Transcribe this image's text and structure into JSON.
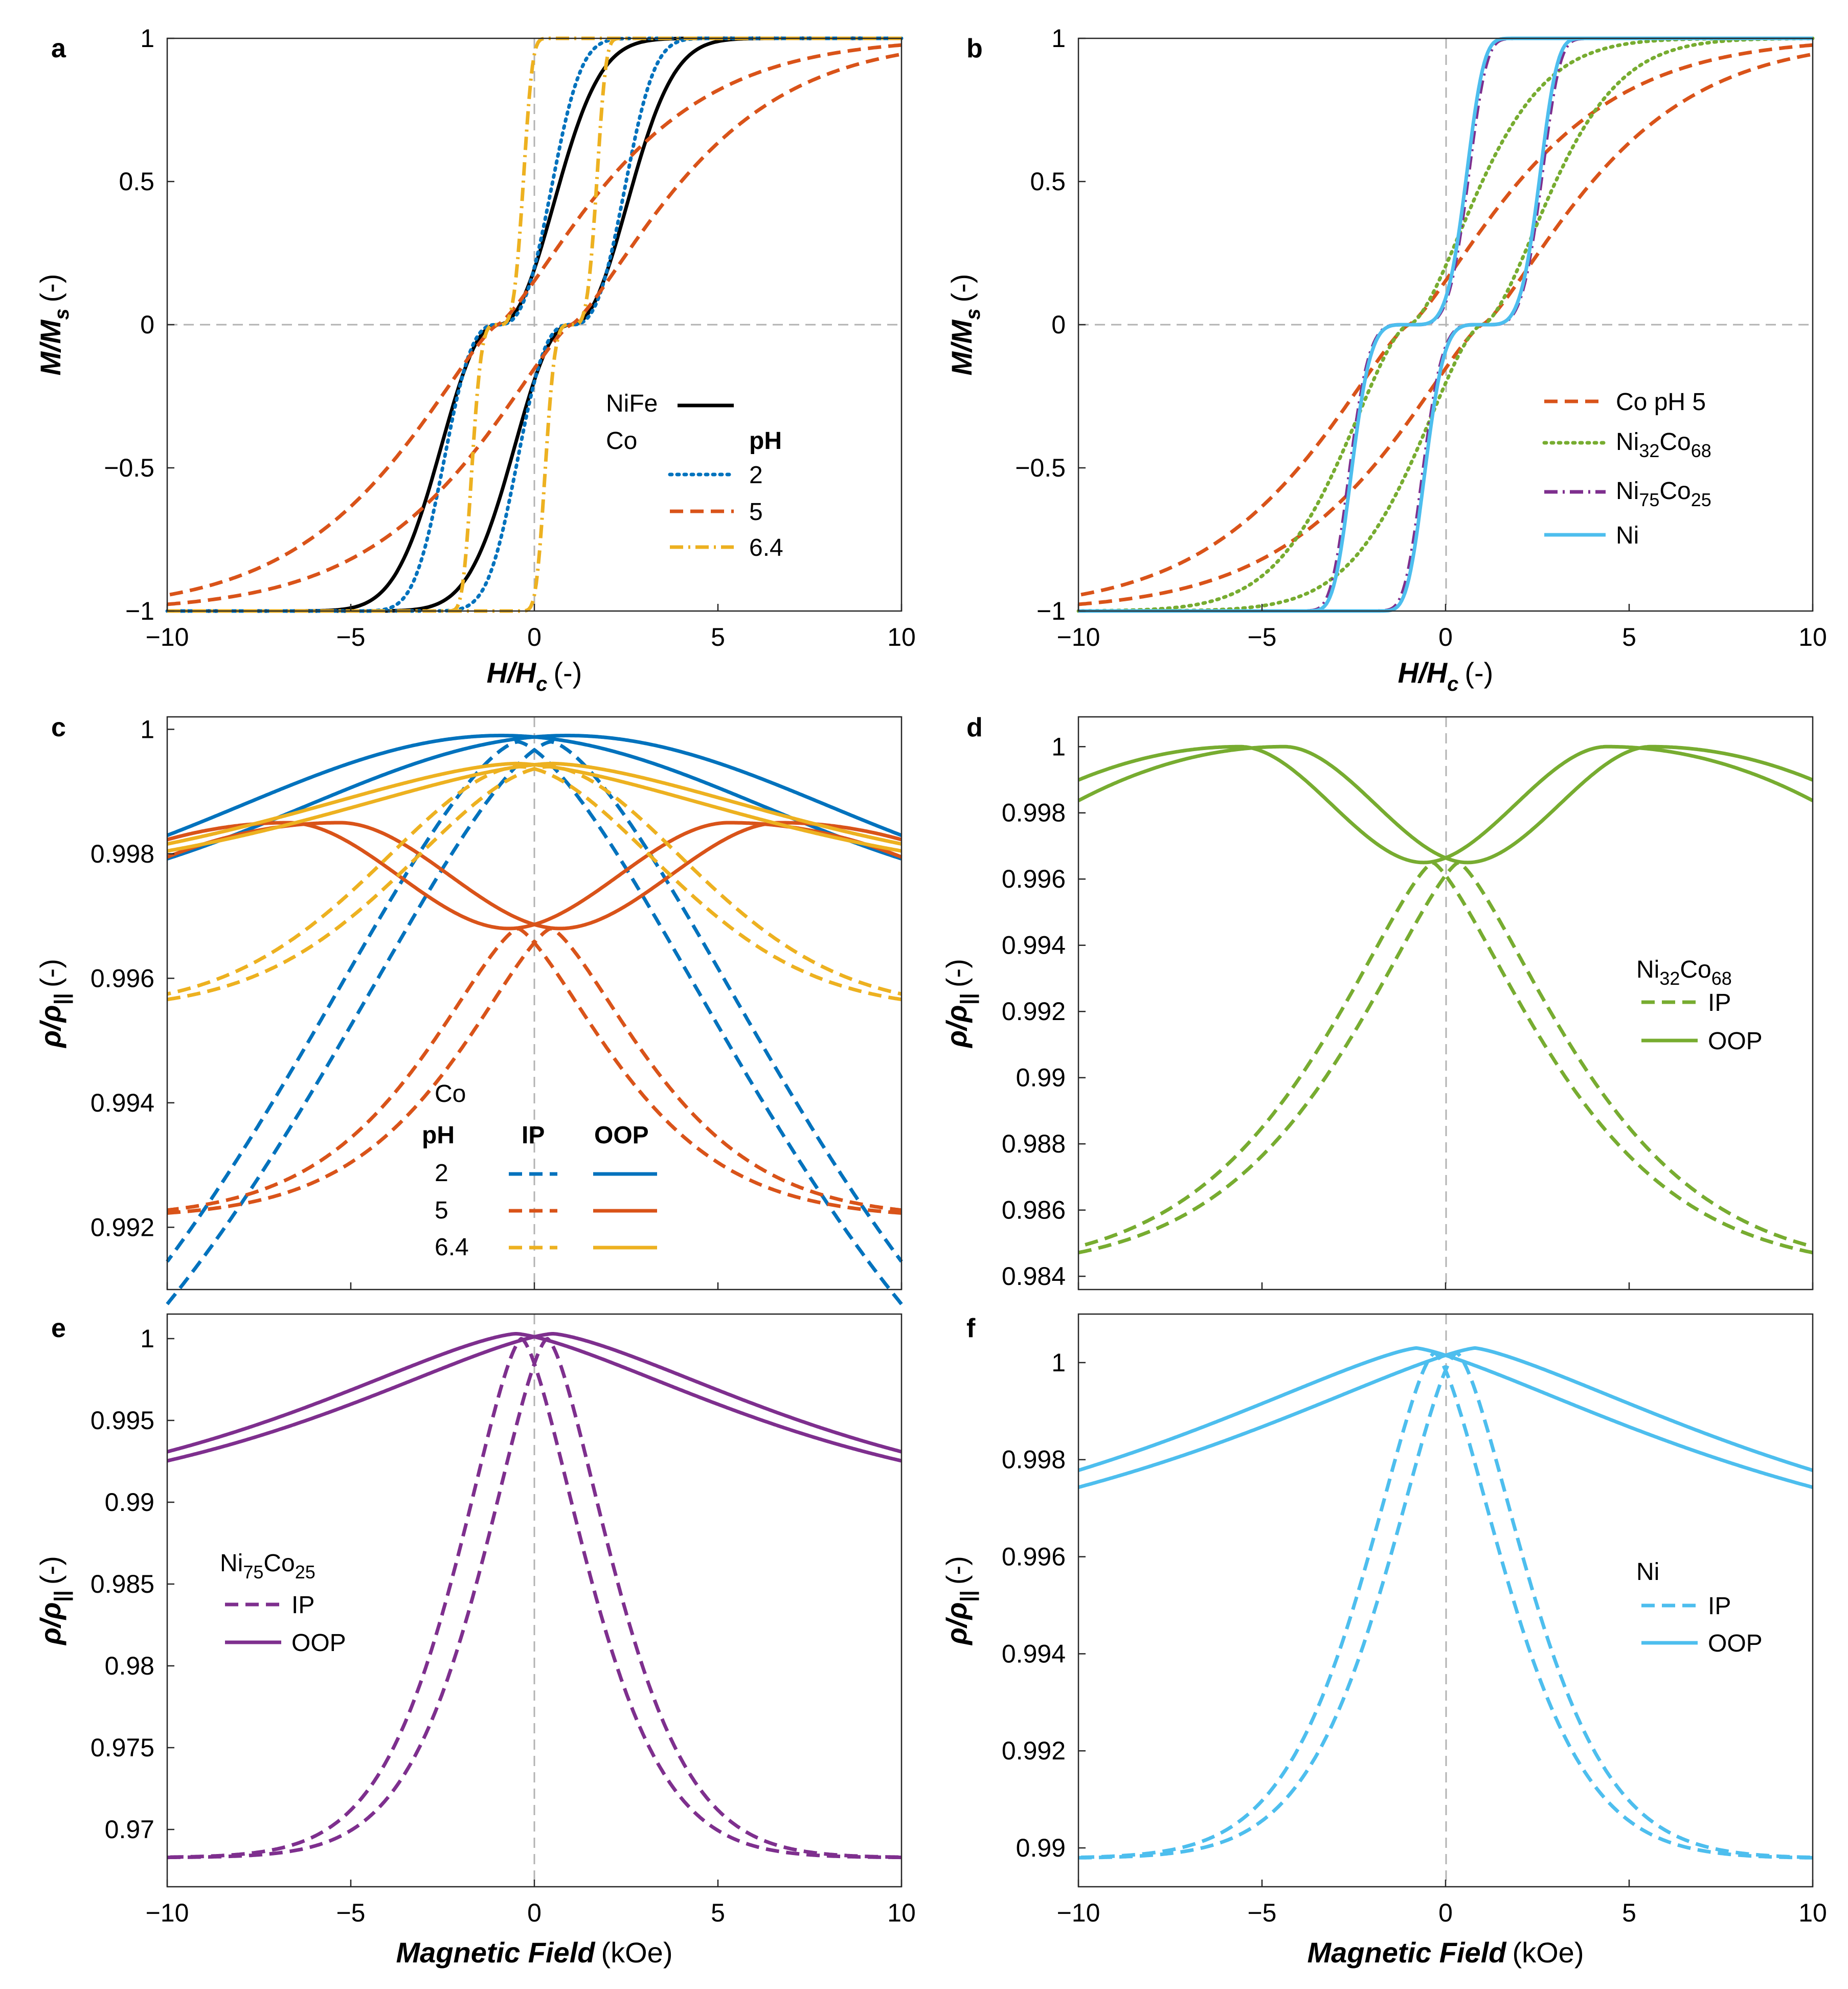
{
  "colors": {
    "black": "#000000",
    "blue": "#0072BD",
    "orange": "#D95319",
    "yellow": "#EDB120",
    "green": "#77AC30",
    "purple": "#7E2F8E",
    "cyan": "#4DBEEE",
    "ref": "#B3B3B3"
  },
  "chart_data": [
    {
      "panel": "a",
      "type": "line",
      "content": "normalized magnetization hysteresis loops",
      "xlabel_main": "H/H",
      "xlabel_sub": "c",
      "xlabel_unit": "(-)",
      "ylabel_main": "M/M",
      "ylabel_sub": "s",
      "ylabel_unit": "(-)",
      "xlim": [
        -10,
        10
      ],
      "ylim": [
        -1,
        1
      ],
      "xticks": [
        "−10",
        "−5",
        "0",
        "5",
        "10"
      ],
      "yticks": [
        "−1",
        "−0.5",
        "0",
        "0.5",
        "1"
      ],
      "legend": {
        "row1": "NiFe",
        "row2": "Co",
        "header": "pH",
        "items": [
          "2",
          "5",
          "6.4"
        ]
      },
      "series": [
        {
          "name": "NiFe",
          "color": "black",
          "dash": "solid",
          "hc": 1.0,
          "x50": 1.7,
          "p": 2.2
        },
        {
          "name": "Co pH 2",
          "color": "blue",
          "dash": "dot",
          "hc": 1.0,
          "x50": 1.5,
          "p": 2.8
        },
        {
          "name": "Co pH 5",
          "color": "orange",
          "dash": "dash",
          "hc": 1.0,
          "x50": 3.0,
          "p": 1.3
        },
        {
          "name": "Co pH 6.4",
          "color": "yellow",
          "dash": "dashdot",
          "hc": 1.0,
          "x50": 0.7,
          "p": 4.0
        }
      ]
    },
    {
      "panel": "b",
      "type": "line",
      "content": "normalized magnetization hysteresis loops",
      "xlabel_main": "H/H",
      "xlabel_sub": "c",
      "xlabel_unit": "(-)",
      "ylabel_main": "M/M",
      "ylabel_sub": "s",
      "ylabel_unit": "(-)",
      "xlim": [
        -10,
        10
      ],
      "ylim": [
        -1,
        1
      ],
      "xticks": [
        "−10",
        "−5",
        "0",
        "5",
        "10"
      ],
      "yticks": [
        "−1",
        "−0.5",
        "0",
        "0.5",
        "1"
      ],
      "legend": [
        {
          "label": "Co pH 5"
        },
        {
          "label": "Ni",
          "sub1": "32",
          "mid": "Co",
          "sub2": "68"
        },
        {
          "label": "Ni",
          "sub1": "75",
          "mid": "Co",
          "sub2": "25"
        },
        {
          "label": "Ni"
        }
      ],
      "series": [
        {
          "name": "Co pH 5",
          "color": "orange",
          "dash": "dash",
          "hc": 1.0,
          "x50": 3.0,
          "p": 1.3
        },
        {
          "name": "Ni32Co68",
          "color": "green",
          "dash": "dot",
          "hc": 1.0,
          "x50": 2.0,
          "p": 1.6
        },
        {
          "name": "Ni75Co25",
          "color": "purple",
          "dash": "dashdot",
          "hc": 1.0,
          "x50": 1.6,
          "p": 4.5
        },
        {
          "name": "Ni",
          "color": "cyan",
          "dash": "solid",
          "hc": 1.0,
          "x50": 1.55,
          "p": 4.5
        }
      ]
    },
    {
      "panel": "c",
      "type": "line",
      "content": "normalized resistivity vs field, Co films",
      "ylabel_main": "ρ/ρ",
      "ylabel_sub": "||",
      "ylabel_unit": "(-)",
      "xlim": [
        -10,
        10
      ],
      "ylim": [
        0.991,
        1.0002
      ],
      "yticks": [
        {
          "v": 0.992,
          "label": "0.992"
        },
        {
          "v": 0.994,
          "label": "0.994"
        },
        {
          "v": 0.996,
          "label": "0.996"
        },
        {
          "v": 0.998,
          "label": "0.998"
        },
        {
          "v": 1.0,
          "label": "1"
        }
      ],
      "legend": {
        "title": "Co",
        "col1": "pH",
        "col2": "IP",
        "col3": "OOP",
        "rows": [
          "2",
          "5",
          "6.4"
        ]
      },
      "series": [
        {
          "name": "pH 2 IP",
          "color": "blue",
          "dash": "dash",
          "kind": "ip_peak",
          "y0": 0.9998,
          "yend": 0.9911,
          "w": 10,
          "p": 1.5,
          "shift": 0.45,
          "peak": "sharp"
        },
        {
          "name": "pH 2 OOP",
          "color": "blue",
          "dash": "solid",
          "kind": "peak",
          "y0": 0.9999,
          "yend": 0.9981,
          "w": 10,
          "p": 2.0,
          "shift": 0.9,
          "peak": "round"
        },
        {
          "name": "pH 5 IP",
          "color": "orange",
          "dash": "dash",
          "kind": "ip_peak",
          "y0": 0.9968,
          "yend": 0.99225,
          "w": 3.8,
          "p": 1.4,
          "shift": 0.45,
          "peak": "sharp"
        },
        {
          "name": "pH 5 OOP",
          "color": "orange",
          "dash": "solid",
          "kind": "dip",
          "y0": 0.9968,
          "ymax": 0.9985,
          "yend": 0.9981,
          "xpk": 6.0,
          "shift": 0.7
        },
        {
          "name": "pH 6.4 IP",
          "color": "yellow",
          "dash": "dash",
          "kind": "ip_peak",
          "y0": 0.9994,
          "yend": 0.9957,
          "w": 5.5,
          "p": 1.8,
          "shift": 0.4,
          "peak": "sharp"
        },
        {
          "name": "pH 6.4 OOP",
          "color": "yellow",
          "dash": "solid",
          "kind": "peak",
          "y0": 0.99945,
          "yend": 0.9981,
          "w": 9.0,
          "p": 1.6,
          "shift": 0.5,
          "peak": "round"
        }
      ]
    },
    {
      "panel": "d",
      "type": "line",
      "content": "normalized resistivity vs field, Ni32Co68",
      "ylabel_main": "ρ/ρ",
      "ylabel_sub": "||",
      "ylabel_unit": "(-)",
      "xlim": [
        -10,
        10
      ],
      "ylim": [
        0.9836,
        1.0009
      ],
      "yticks": [
        {
          "v": 0.984,
          "label": "0.984"
        },
        {
          "v": 0.986,
          "label": "0.986"
        },
        {
          "v": 0.988,
          "label": "0.988"
        },
        {
          "v": 0.99,
          "label": "0.99"
        },
        {
          "v": 0.992,
          "label": "0.992"
        },
        {
          "v": 0.994,
          "label": "0.994"
        },
        {
          "v": 0.996,
          "label": "0.996"
        },
        {
          "v": 0.998,
          "label": "0.998"
        },
        {
          "v": 1.0,
          "label": "1"
        }
      ],
      "legend": {
        "title": "Ni",
        "sub1": "32",
        "mid": "Co",
        "sub2": "68",
        "ip": "IP",
        "oop": "OOP"
      },
      "series": [
        {
          "name": "IP",
          "color": "green",
          "dash": "dash",
          "kind": "ip_peak",
          "y0": 0.9965,
          "yend": 0.9848,
          "w": 4.5,
          "p": 1.35,
          "shift": 0.35,
          "peak": "sharp"
        },
        {
          "name": "OOP",
          "color": "green",
          "dash": "solid",
          "kind": "dip",
          "y0": 0.9965,
          "ymax": 1.0,
          "yend": 0.9987,
          "xpk": 5.0,
          "shift": 0.6
        }
      ]
    },
    {
      "panel": "e",
      "type": "line",
      "content": "normalized resistivity vs field, Ni75Co25",
      "xlabel_main": "Magnetic Field",
      "xlabel_unit": "(kOe)",
      "ylabel_main": "ρ/ρ",
      "ylabel_sub": "||",
      "ylabel_unit": "(-)",
      "xlim": [
        -10,
        10
      ],
      "ylim": [
        0.9665,
        1.0015
      ],
      "xticks": [
        "−10",
        "−5",
        "0",
        "5",
        "10"
      ],
      "yticks": [
        {
          "v": 0.97,
          "label": "0.97"
        },
        {
          "v": 0.975,
          "label": "0.975"
        },
        {
          "v": 0.98,
          "label": "0.98"
        },
        {
          "v": 0.985,
          "label": "0.985"
        },
        {
          "v": 0.99,
          "label": "0.99"
        },
        {
          "v": 0.995,
          "label": "0.995"
        },
        {
          "v": 1.0,
          "label": "1"
        }
      ],
      "legend": {
        "title": "Ni",
        "sub1": "75",
        "mid": "Co",
        "sub2": "25",
        "ip": "IP",
        "oop": "OOP"
      },
      "series": [
        {
          "name": "IP",
          "color": "purple",
          "dash": "dash",
          "kind": "ip_peak",
          "y0": 1.0,
          "yend": 0.9683,
          "w": 2.6,
          "p": 1.5,
          "shift": 0.35,
          "peak": "sharp"
        },
        {
          "name": "OOP",
          "color": "purple",
          "dash": "solid",
          "kind": "peak",
          "y0": 1.0003,
          "yend": 0.9928,
          "w": 9.0,
          "p": 1.4,
          "shift": 0.5,
          "peak": "twin"
        }
      ]
    },
    {
      "panel": "f",
      "type": "line",
      "content": "normalized resistivity vs field, Ni",
      "xlabel_main": "Magnetic Field",
      "xlabel_unit": "(kOe)",
      "ylabel_main": "ρ/ρ",
      "ylabel_sub": "||",
      "ylabel_unit": "(-)",
      "xlim": [
        -10,
        10
      ],
      "ylim": [
        0.9892,
        1.001
      ],
      "xticks": [
        "−10",
        "−5",
        "0",
        "5",
        "10"
      ],
      "yticks": [
        {
          "v": 0.99,
          "label": "0.99"
        },
        {
          "v": 0.992,
          "label": "0.992"
        },
        {
          "v": 0.994,
          "label": "0.994"
        },
        {
          "v": 0.996,
          "label": "0.996"
        },
        {
          "v": 0.998,
          "label": "0.998"
        },
        {
          "v": 1.0,
          "label": "1"
        }
      ],
      "legend": {
        "title": "Ni",
        "ip": "IP",
        "oop": "OOP"
      },
      "series": [
        {
          "name": "IP",
          "color": "cyan",
          "dash": "dash",
          "kind": "ip_peak",
          "y0": 1.0002,
          "yend": 0.9898,
          "w": 2.8,
          "p": 1.5,
          "shift": 0.3,
          "peak": "sharp"
        },
        {
          "name": "OOP",
          "color": "cyan",
          "dash": "solid",
          "kind": "peak",
          "y0": 1.0003,
          "yend": 0.9976,
          "w": 11,
          "p": 1.3,
          "shift": 0.8,
          "peak": "round"
        }
      ]
    }
  ]
}
